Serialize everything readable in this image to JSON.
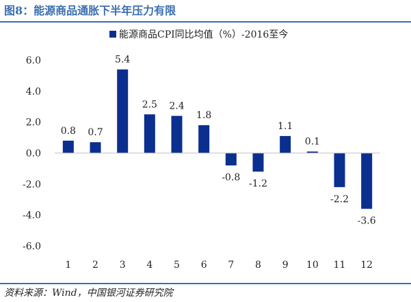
{
  "figure": {
    "title": "图8：能源商品通胀下半年压力有限",
    "source": "资料来源：Wind，中国银河证券研究院"
  },
  "colors": {
    "accent": "#3a6fb0",
    "bar": "#0b2f8f",
    "axis": "#bfbfbf"
  },
  "chart_data": {
    "type": "bar",
    "title": "",
    "legend": "top-center",
    "categories": [
      "1",
      "2",
      "3",
      "4",
      "5",
      "6",
      "7",
      "8",
      "9",
      "10",
      "11",
      "12"
    ],
    "series": [
      {
        "name": "能源商品CPI同比均值（%）-2016至今",
        "values": [
          0.8,
          0.7,
          5.4,
          2.5,
          2.4,
          1.8,
          -0.8,
          -1.2,
          1.1,
          0.1,
          -2.2,
          -3.6
        ]
      }
    ],
    "data_labels": [
      "0.8",
      "0.7",
      "5.4",
      "2.5",
      "2.4",
      "1.8",
      "-0.8",
      "-1.2",
      "1.1",
      "0.1",
      "-2.2",
      "-3.6"
    ],
    "ylim": [
      -6,
      6
    ],
    "yticks": [
      "-6.0",
      "-4.0",
      "-2.0",
      "0.0",
      "2.0",
      "4.0",
      "6.0"
    ],
    "xlabel": "",
    "ylabel": "",
    "grid": false
  }
}
